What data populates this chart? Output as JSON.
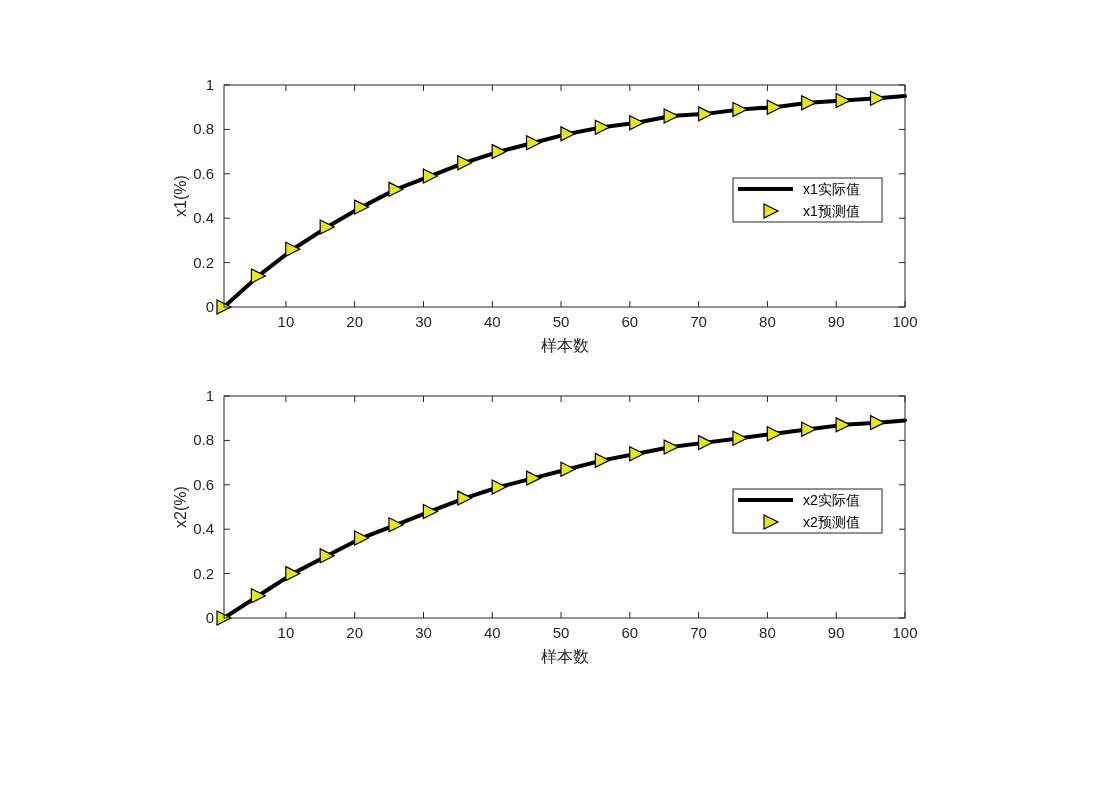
{
  "chart_data": [
    {
      "type": "line",
      "ylabel": "x1(%)",
      "xlabel": "样本数",
      "xlim": [
        1,
        100
      ],
      "xticks": [
        10,
        20,
        30,
        40,
        50,
        60,
        70,
        80,
        90,
        100
      ],
      "ylim": [
        0,
        1
      ],
      "yticks": [
        0,
        0.2,
        0.4,
        0.6,
        0.8,
        1
      ],
      "grid": false,
      "legend": "right",
      "series": [
        {
          "name": "x1实际值",
          "type": "line",
          "color": "#000000",
          "line_style": "solid",
          "marker": "none",
          "x": [
            1,
            6,
            11,
            16,
            21,
            26,
            31,
            36,
            41,
            46,
            51,
            56,
            61,
            66,
            71,
            76,
            81,
            86,
            91,
            96,
            100
          ],
          "values": [
            0,
            0.14,
            0.26,
            0.36,
            0.45,
            0.53,
            0.59,
            0.65,
            0.7,
            0.74,
            0.78,
            0.81,
            0.83,
            0.86,
            0.87,
            0.89,
            0.9,
            0.92,
            0.93,
            0.94,
            0.95
          ]
        },
        {
          "name": "x1预测值",
          "type": "scatter",
          "color": "#e6e619",
          "marker": "triangle",
          "x": [
            1,
            6,
            11,
            16,
            21,
            26,
            31,
            36,
            41,
            46,
            51,
            56,
            61,
            66,
            71,
            76,
            81,
            86,
            91,
            96
          ],
          "values": [
            0,
            0.14,
            0.26,
            0.36,
            0.45,
            0.53,
            0.59,
            0.65,
            0.7,
            0.74,
            0.78,
            0.81,
            0.83,
            0.86,
            0.87,
            0.89,
            0.9,
            0.92,
            0.93,
            0.94
          ]
        }
      ]
    },
    {
      "type": "line",
      "ylabel": "x2(%)",
      "xlabel": "样本数",
      "xlim": [
        1,
        100
      ],
      "xticks": [
        10,
        20,
        30,
        40,
        50,
        60,
        70,
        80,
        90,
        100
      ],
      "ylim": [
        0,
        1
      ],
      "yticks": [
        0,
        0.2,
        0.4,
        0.6,
        0.8,
        1
      ],
      "grid": false,
      "legend": "right",
      "series": [
        {
          "name": "x2实际值",
          "type": "line",
          "color": "#000000",
          "line_style": "solid",
          "marker": "none",
          "x": [
            1,
            6,
            11,
            16,
            21,
            26,
            31,
            36,
            41,
            46,
            51,
            56,
            61,
            66,
            71,
            76,
            81,
            86,
            91,
            96,
            100
          ],
          "values": [
            0,
            0.1,
            0.2,
            0.28,
            0.36,
            0.42,
            0.48,
            0.54,
            0.59,
            0.63,
            0.67,
            0.71,
            0.74,
            0.77,
            0.79,
            0.81,
            0.83,
            0.85,
            0.87,
            0.88,
            0.89
          ]
        },
        {
          "name": "x2预测值",
          "type": "scatter",
          "color": "#e6e619",
          "marker": "triangle",
          "x": [
            1,
            6,
            11,
            16,
            21,
            26,
            31,
            36,
            41,
            46,
            51,
            56,
            61,
            66,
            71,
            76,
            81,
            86,
            91,
            96
          ],
          "values": [
            0,
            0.1,
            0.2,
            0.28,
            0.36,
            0.42,
            0.48,
            0.54,
            0.59,
            0.63,
            0.67,
            0.71,
            0.74,
            0.77,
            0.79,
            0.81,
            0.83,
            0.85,
            0.87,
            0.88
          ]
        }
      ]
    }
  ]
}
